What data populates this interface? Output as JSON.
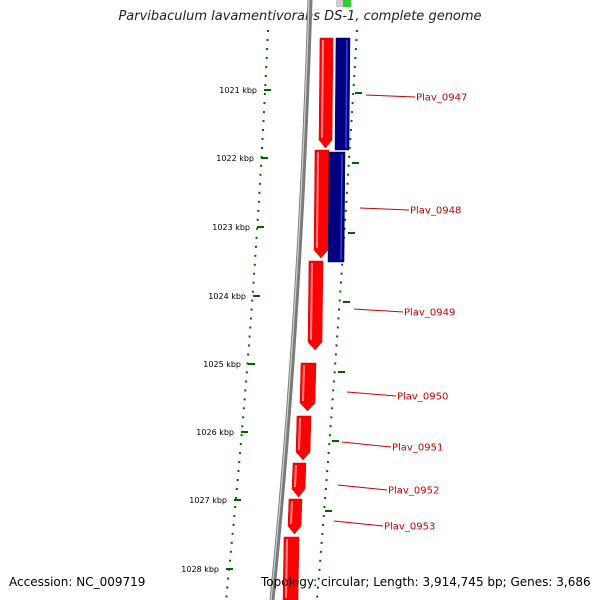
{
  "title": "Parvibaculum lavamentivorans DS-1, complete genome",
  "accession": "Accession: NC_009719",
  "summary": "Topology: circular; Length: 3,914,745 bp; Genes: 3,686",
  "colors": {
    "backbone": "#7a7a7a",
    "forward_gene": "#ff0000",
    "reverse_gene": "#000080",
    "ticks": "#006400",
    "label": "#cc0000",
    "top_marker": "#33cc33"
  },
  "ruler": [
    {
      "label": "1021 kbp"
    },
    {
      "label": "1022 kbp"
    },
    {
      "label": "1023 kbp"
    },
    {
      "label": "1024 kbp"
    },
    {
      "label": "1025 kbp"
    },
    {
      "label": "1026 kbp"
    },
    {
      "label": "1027 kbp"
    },
    {
      "label": "1028 kbp"
    }
  ],
  "genes": [
    {
      "label": "Plav_0947"
    },
    {
      "label": "Plav_0948"
    },
    {
      "label": "Plav_0949"
    },
    {
      "label": "Plav_0950"
    },
    {
      "label": "Plav_0951"
    },
    {
      "label": "Plav_0952"
    },
    {
      "label": "Plav_0953"
    }
  ]
}
